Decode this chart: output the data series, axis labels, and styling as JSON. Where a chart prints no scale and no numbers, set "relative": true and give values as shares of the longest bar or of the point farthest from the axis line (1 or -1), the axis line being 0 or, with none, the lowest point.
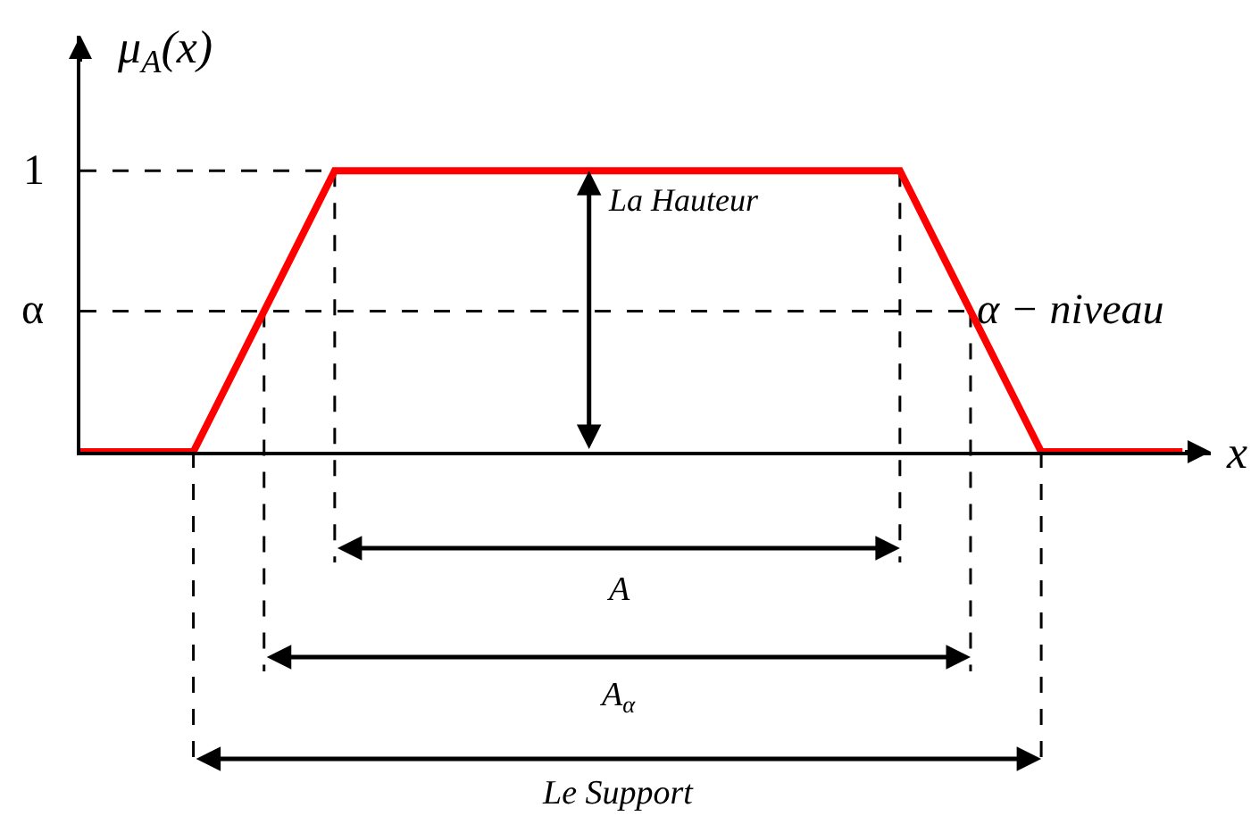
{
  "chart_data": {
    "type": "line",
    "ylabel": "μ$_{A}$(x)",
    "xlabel": "x",
    "relative": true,
    "categories": [
      null,
      null,
      null,
      null,
      null,
      null,
      null,
      null,
      null,
      null,
      null,
      null,
      null,
      null,
      null,
      null,
      null,
      null,
      null,
      null,
      null,
      null,
      null,
      null,
      null,
      null,
      null,
      null,
      null,
      null,
      null,
      null,
      null,
      null,
      null,
      null,
      null,
      null,
      null,
      null
    ],
    "values": [
      0,
      0,
      0,
      0,
      0,
      0.2,
      0.4,
      0.6,
      0.8,
      1,
      1,
      1,
      1,
      1,
      1,
      1,
      1,
      1,
      1,
      1,
      1,
      1,
      1,
      1,
      1,
      1,
      1,
      1,
      1,
      1,
      0.8,
      0.6,
      0.4,
      0.2,
      0,
      0,
      0,
      0,
      0,
      0
    ],
    "color": "#ff0000",
    "ref_lines": [
      {
        "axis": "y",
        "value": 1,
        "label": "1",
        "line_style": "dashed",
        "color": "#000000"
      },
      {
        "axis": "y",
        "value": 0.5,
        "label": "α",
        "line_style": "dashed",
        "color": "#000000"
      }
    ],
    "annotations": [
      "La Hauteur",
      "α − niveau",
      "A",
      "A$_{α}$",
      "Le Support"
    ]
  }
}
